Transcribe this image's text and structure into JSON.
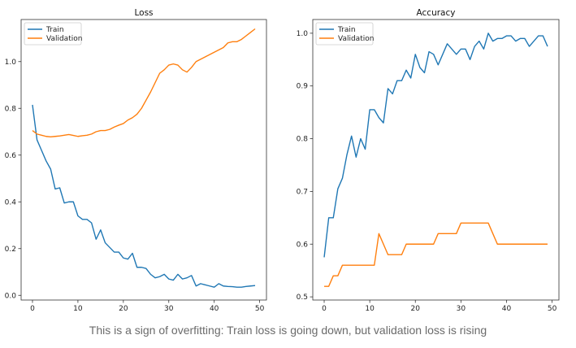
{
  "caption": "This is a sign of overfitting: Train loss is going down, but validation loss is rising",
  "colors": {
    "train": "#1f77b4",
    "validation": "#ff7f0e",
    "axis": "#333333",
    "text": "#222222",
    "caption": "#6b6b6b"
  },
  "chart_data": [
    {
      "type": "line",
      "title": "Loss",
      "xlabel": "",
      "ylabel": "",
      "xlim": [
        -2.5,
        51.5
      ],
      "ylim": [
        -0.02,
        1.18
      ],
      "xticks": [
        0,
        10,
        20,
        30,
        40,
        50
      ],
      "yticks": [
        0.0,
        0.2,
        0.4,
        0.6,
        0.8,
        1.0
      ],
      "ytick_format": "1",
      "legend": "top-left",
      "grid": false,
      "x": [
        0,
        1,
        2,
        3,
        4,
        5,
        6,
        7,
        8,
        9,
        10,
        11,
        12,
        13,
        14,
        15,
        16,
        17,
        18,
        19,
        20,
        21,
        22,
        23,
        24,
        25,
        26,
        27,
        28,
        29,
        30,
        31,
        32,
        33,
        34,
        35,
        36,
        37,
        38,
        39,
        40,
        41,
        42,
        43,
        44,
        45,
        46,
        47,
        48,
        49
      ],
      "series": [
        {
          "name": "Train",
          "color": "#1f77b4",
          "values": [
            0.815,
            0.665,
            0.62,
            0.575,
            0.54,
            0.455,
            0.46,
            0.395,
            0.4,
            0.4,
            0.34,
            0.325,
            0.325,
            0.31,
            0.24,
            0.28,
            0.225,
            0.205,
            0.185,
            0.185,
            0.16,
            0.155,
            0.18,
            0.12,
            0.12,
            0.115,
            0.09,
            0.075,
            0.08,
            0.09,
            0.07,
            0.065,
            0.09,
            0.07,
            0.075,
            0.085,
            0.04,
            0.05,
            0.045,
            0.04,
            0.035,
            0.05,
            0.04,
            0.038,
            0.037,
            0.035,
            0.035,
            0.038,
            0.04,
            0.042
          ]
        },
        {
          "name": "Validation",
          "color": "#ff7f0e",
          "values": [
            0.705,
            0.69,
            0.685,
            0.68,
            0.678,
            0.68,
            0.682,
            0.685,
            0.688,
            0.684,
            0.68,
            0.683,
            0.685,
            0.69,
            0.7,
            0.705,
            0.705,
            0.71,
            0.72,
            0.728,
            0.735,
            0.75,
            0.76,
            0.775,
            0.8,
            0.835,
            0.87,
            0.91,
            0.95,
            0.965,
            0.985,
            0.99,
            0.985,
            0.965,
            0.955,
            0.975,
            1.0,
            1.01,
            1.02,
            1.03,
            1.04,
            1.05,
            1.06,
            1.08,
            1.085,
            1.085,
            1.095,
            1.11,
            1.125,
            1.14
          ]
        }
      ]
    },
    {
      "type": "line",
      "title": "Accuracy",
      "xlabel": "",
      "ylabel": "",
      "xlim": [
        -2.5,
        51.5
      ],
      "ylim": [
        0.494,
        1.026
      ],
      "xticks": [
        0,
        10,
        20,
        30,
        40,
        50
      ],
      "yticks": [
        0.5,
        0.6,
        0.7,
        0.8,
        0.9,
        1.0
      ],
      "ytick_format": "1",
      "legend": "top-left",
      "grid": false,
      "x": [
        0,
        1,
        2,
        3,
        4,
        5,
        6,
        7,
        8,
        9,
        10,
        11,
        12,
        13,
        14,
        15,
        16,
        17,
        18,
        19,
        20,
        21,
        22,
        23,
        24,
        25,
        26,
        27,
        28,
        29,
        30,
        31,
        32,
        33,
        34,
        35,
        36,
        37,
        38,
        39,
        40,
        41,
        42,
        43,
        44,
        45,
        46,
        47,
        48,
        49
      ],
      "series": [
        {
          "name": "Train",
          "color": "#1f77b4",
          "values": [
            0.575,
            0.65,
            0.65,
            0.705,
            0.725,
            0.77,
            0.805,
            0.765,
            0.8,
            0.78,
            0.855,
            0.855,
            0.84,
            0.83,
            0.895,
            0.885,
            0.91,
            0.91,
            0.93,
            0.915,
            0.96,
            0.935,
            0.925,
            0.965,
            0.96,
            0.94,
            0.96,
            0.98,
            0.97,
            0.96,
            0.97,
            0.97,
            0.95,
            0.975,
            0.985,
            0.97,
            1.0,
            0.985,
            0.99,
            0.99,
            0.995,
            0.995,
            0.985,
            0.99,
            0.99,
            0.975,
            0.985,
            0.995,
            0.995,
            0.975
          ]
        },
        {
          "name": "Validation",
          "color": "#ff7f0e",
          "values": [
            0.52,
            0.52,
            0.54,
            0.54,
            0.56,
            0.56,
            0.56,
            0.56,
            0.56,
            0.56,
            0.56,
            0.56,
            0.62,
            0.6,
            0.58,
            0.58,
            0.58,
            0.58,
            0.6,
            0.6,
            0.6,
            0.6,
            0.6,
            0.6,
            0.6,
            0.62,
            0.62,
            0.62,
            0.62,
            0.62,
            0.64,
            0.64,
            0.64,
            0.64,
            0.64,
            0.64,
            0.64,
            0.62,
            0.6,
            0.6,
            0.6,
            0.6,
            0.6,
            0.6,
            0.6,
            0.6,
            0.6,
            0.6,
            0.6,
            0.6
          ]
        }
      ]
    }
  ]
}
